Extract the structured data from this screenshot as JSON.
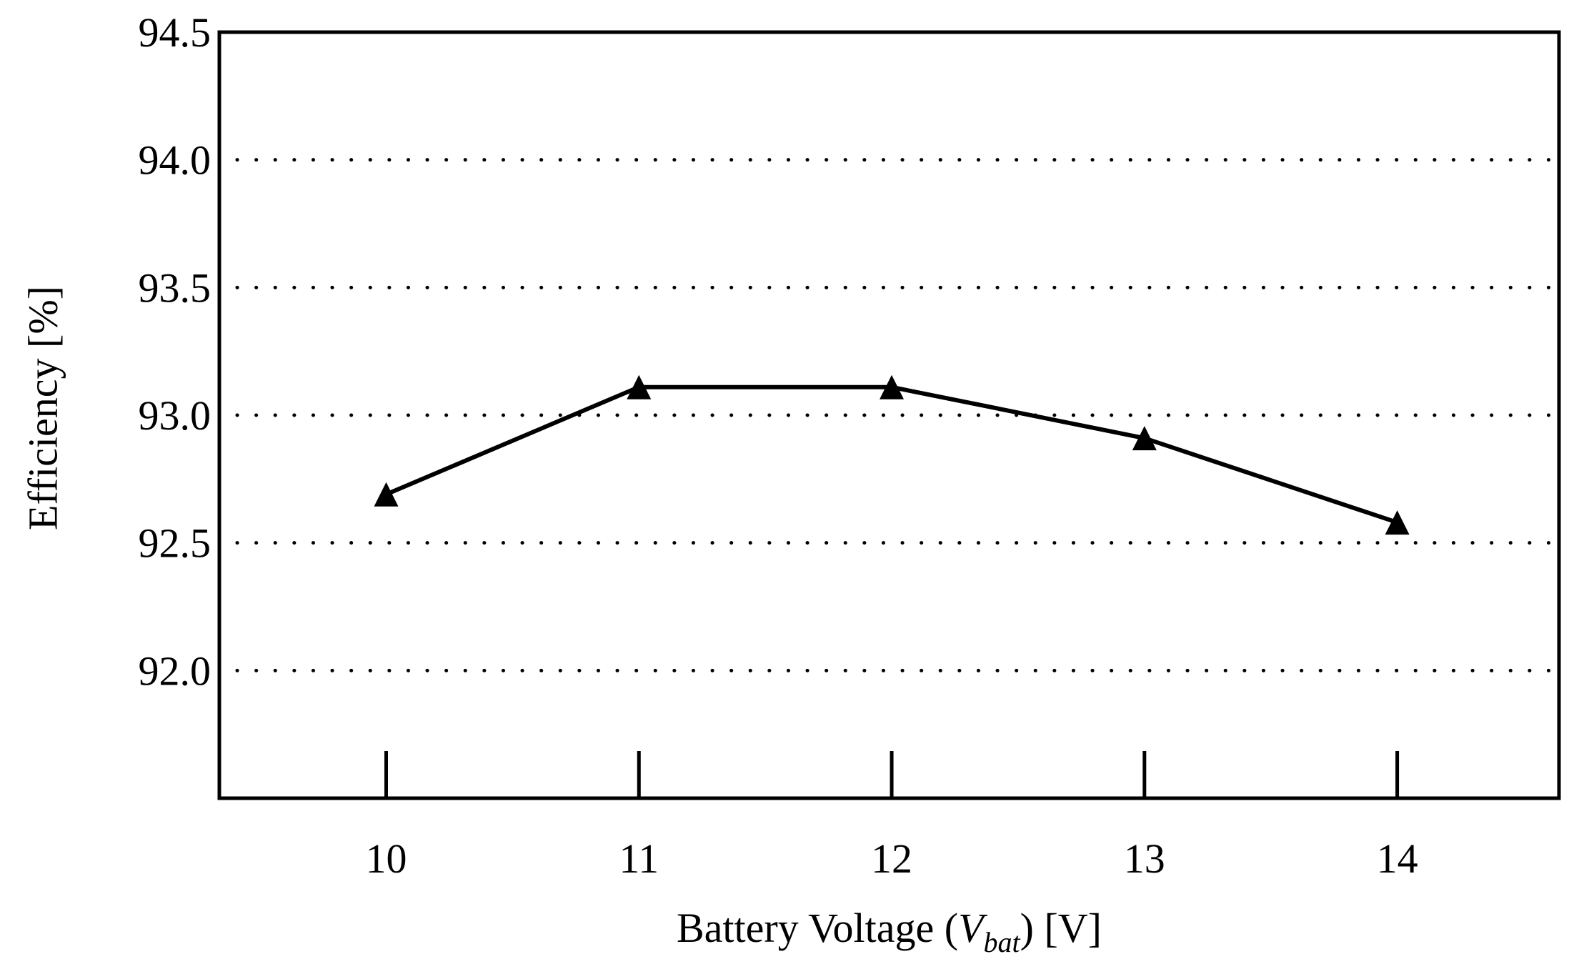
{
  "chart_data": {
    "type": "line",
    "xlabel_parts": [
      "Battery Voltage (",
      "V",
      "bat",
      ") [V]"
    ],
    "ylabel": "Efficiency [%]",
    "x": [
      10,
      11,
      12,
      13,
      14
    ],
    "x_tick_labels": [
      "10",
      "11",
      "12",
      "13",
      "14"
    ],
    "y_tick_labels": [
      "92.0",
      "92.5",
      "93.0",
      "93.5",
      "94.0",
      "94.5"
    ],
    "series": [
      {
        "values": [
          92.69,
          93.11,
          93.11,
          92.91,
          92.58
        ],
        "marker": "triangle",
        "color": "#000000"
      }
    ],
    "xlim": [
      9.34,
      14.64
    ],
    "ylim": [
      91.5,
      94.5
    ],
    "grid": "horizontal dotted",
    "legend": "none"
  }
}
